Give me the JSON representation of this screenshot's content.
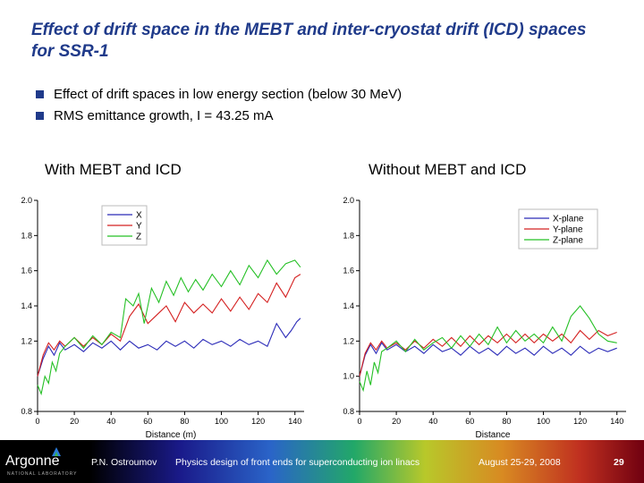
{
  "title": "Effect of drift space in the MEBT and inter-cryostat drift (ICD) spaces for SSR-1",
  "bullets": [
    "Effect of drift spaces in low energy section (below 30 MeV)",
    "RMS emittance growth, I = 43.25 mA"
  ],
  "footer": {
    "logo": "Argonne",
    "logo_sub": "NATIONAL LABORATORY",
    "author": "P.N. Ostroumov",
    "talk": "Physics design of front ends for superconducting ion linacs",
    "date": "August 25-29, 2008",
    "page": "29"
  },
  "colors": {
    "x": "#2b2bb8",
    "y": "#d42020",
    "z": "#25c025",
    "title": "#1f3a8a"
  },
  "chart_data": [
    {
      "type": "line",
      "title": "With MEBT and ICD",
      "xlabel": "Distance (m)",
      "ylabel": "",
      "xlim": [
        0,
        145
      ],
      "ylim": [
        0.8,
        2.0
      ],
      "xticks": [
        0,
        20,
        40,
        60,
        80,
        100,
        120,
        140
      ],
      "yticks": [
        0.8,
        1.2,
        1.4,
        1.6,
        1.8,
        2.0
      ],
      "legend": "top-left",
      "series": [
        {
          "name": "X",
          "color": "#2b2bb8",
          "x": [
            0,
            3,
            6,
            9,
            12,
            15,
            20,
            25,
            30,
            35,
            40,
            45,
            50,
            55,
            60,
            65,
            70,
            75,
            80,
            85,
            90,
            95,
            100,
            105,
            110,
            115,
            120,
            125,
            130,
            135,
            138,
            141,
            143
          ],
          "y": [
            1.0,
            1.1,
            1.17,
            1.12,
            1.19,
            1.15,
            1.18,
            1.14,
            1.19,
            1.16,
            1.2,
            1.15,
            1.2,
            1.16,
            1.18,
            1.15,
            1.2,
            1.17,
            1.2,
            1.16,
            1.21,
            1.18,
            1.2,
            1.17,
            1.21,
            1.18,
            1.2,
            1.17,
            1.3,
            1.22,
            1.26,
            1.31,
            1.33
          ]
        },
        {
          "name": "Y",
          "color": "#d42020",
          "x": [
            0,
            3,
            6,
            9,
            12,
            15,
            20,
            25,
            30,
            35,
            40,
            45,
            50,
            55,
            60,
            65,
            70,
            75,
            80,
            85,
            90,
            95,
            100,
            105,
            110,
            115,
            120,
            125,
            130,
            135,
            140,
            143
          ],
          "y": [
            1.0,
            1.12,
            1.19,
            1.15,
            1.2,
            1.17,
            1.22,
            1.17,
            1.22,
            1.18,
            1.24,
            1.2,
            1.34,
            1.41,
            1.3,
            1.35,
            1.4,
            1.31,
            1.42,
            1.36,
            1.41,
            1.36,
            1.44,
            1.37,
            1.45,
            1.38,
            1.47,
            1.42,
            1.53,
            1.45,
            1.56,
            1.58
          ]
        },
        {
          "name": "Z",
          "color": "#25c025",
          "x": [
            0,
            2,
            4,
            6,
            8,
            10,
            12,
            15,
            20,
            25,
            30,
            35,
            40,
            45,
            48,
            52,
            55,
            58,
            62,
            66,
            70,
            74,
            78,
            82,
            86,
            90,
            95,
            100,
            105,
            110,
            115,
            120,
            125,
            130,
            135,
            140,
            143
          ],
          "y": [
            0.95,
            0.9,
            1.0,
            0.96,
            1.08,
            1.03,
            1.13,
            1.17,
            1.22,
            1.16,
            1.23,
            1.18,
            1.25,
            1.22,
            1.44,
            1.4,
            1.47,
            1.3,
            1.5,
            1.42,
            1.54,
            1.46,
            1.56,
            1.48,
            1.55,
            1.49,
            1.58,
            1.51,
            1.6,
            1.52,
            1.63,
            1.56,
            1.66,
            1.58,
            1.64,
            1.66,
            1.62
          ]
        }
      ]
    },
    {
      "type": "line",
      "title": "Without MEBT and ICD",
      "xlabel": "Distance",
      "ylabel": "",
      "xlim": [
        0,
        145
      ],
      "ylim": [
        0.8,
        2.0
      ],
      "xticks": [
        0,
        20,
        40,
        60,
        80,
        100,
        120,
        140
      ],
      "yticks": [
        0.8,
        1.0,
        1.2,
        1.4,
        1.6,
        1.8,
        2.0
      ],
      "legend": "top-right",
      "series": [
        {
          "name": "X-plane",
          "color": "#2b2bb8",
          "x": [
            0,
            3,
            6,
            9,
            12,
            15,
            20,
            25,
            30,
            35,
            40,
            45,
            50,
            55,
            60,
            65,
            70,
            75,
            80,
            85,
            90,
            95,
            100,
            105,
            110,
            115,
            120,
            125,
            130,
            135,
            140
          ],
          "y": [
            1.0,
            1.12,
            1.18,
            1.13,
            1.19,
            1.15,
            1.18,
            1.14,
            1.17,
            1.13,
            1.18,
            1.14,
            1.16,
            1.12,
            1.17,
            1.13,
            1.16,
            1.12,
            1.17,
            1.13,
            1.16,
            1.12,
            1.17,
            1.13,
            1.16,
            1.12,
            1.17,
            1.13,
            1.16,
            1.14,
            1.16
          ]
        },
        {
          "name": "Y-plane",
          "color": "#d42020",
          "x": [
            0,
            3,
            6,
            9,
            12,
            15,
            20,
            25,
            30,
            35,
            40,
            45,
            50,
            55,
            60,
            65,
            70,
            75,
            80,
            85,
            90,
            95,
            100,
            105,
            110,
            115,
            120,
            125,
            130,
            135,
            140
          ],
          "y": [
            1.0,
            1.13,
            1.19,
            1.15,
            1.2,
            1.16,
            1.19,
            1.15,
            1.2,
            1.16,
            1.21,
            1.17,
            1.22,
            1.17,
            1.23,
            1.18,
            1.23,
            1.19,
            1.24,
            1.19,
            1.24,
            1.19,
            1.24,
            1.2,
            1.24,
            1.19,
            1.26,
            1.21,
            1.26,
            1.23,
            1.25
          ]
        },
        {
          "name": "Z-plane",
          "color": "#25c025",
          "x": [
            0,
            2,
            4,
            6,
            8,
            10,
            12,
            15,
            20,
            25,
            30,
            35,
            40,
            45,
            50,
            55,
            60,
            65,
            70,
            75,
            80,
            85,
            90,
            95,
            100,
            105,
            110,
            115,
            120,
            125,
            130,
            135,
            140
          ],
          "y": [
            0.97,
            0.92,
            1.03,
            0.95,
            1.08,
            1.02,
            1.14,
            1.16,
            1.2,
            1.14,
            1.21,
            1.15,
            1.19,
            1.22,
            1.16,
            1.23,
            1.17,
            1.24,
            1.18,
            1.28,
            1.19,
            1.26,
            1.2,
            1.24,
            1.19,
            1.28,
            1.2,
            1.34,
            1.4,
            1.33,
            1.24,
            1.2,
            1.19
          ]
        }
      ]
    }
  ]
}
